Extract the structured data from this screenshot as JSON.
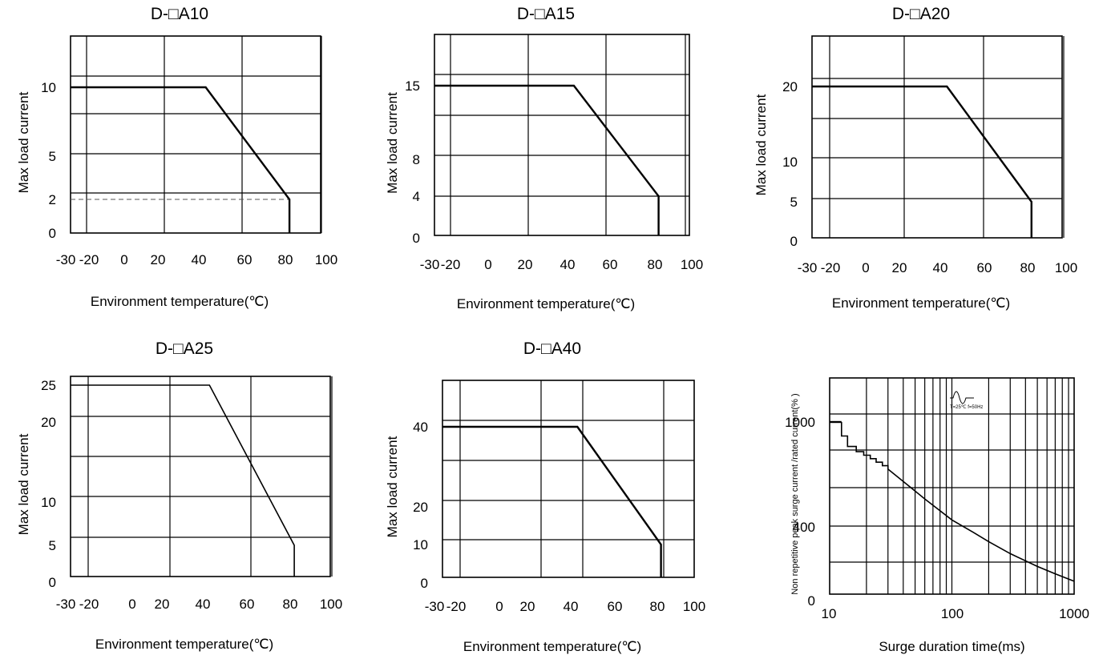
{
  "chart_data": [
    {
      "type": "line",
      "title": "D-□A10",
      "xlabel": "Environment temperature(℃)",
      "ylabel": "Max load current",
      "x_ticks": [
        "-30",
        "-20",
        "0",
        "20",
        "40",
        "60",
        "80",
        "100"
      ],
      "y_ticks": [
        "0",
        "2",
        "5",
        "10"
      ],
      "xlim": [
        -30,
        100
      ],
      "ylim": [
        0,
        14
      ],
      "series": [
        {
          "x": [
            -30,
            43,
            82,
            82
          ],
          "y": [
            10,
            10,
            2,
            0
          ]
        }
      ],
      "reference_line": {
        "y": 2,
        "style": "dashed"
      },
      "grid": true
    },
    {
      "type": "line",
      "title": "D-□A15",
      "xlabel": "Environment temperature(℃)",
      "ylabel": "Max load current",
      "x_ticks": [
        "-30",
        "-20",
        "0",
        "20",
        "40",
        "60",
        "80",
        "100"
      ],
      "y_ticks": [
        "0",
        "4",
        "8",
        "15"
      ],
      "xlim": [
        -30,
        100
      ],
      "ylim": [
        0,
        20
      ],
      "series": [
        {
          "x": [
            -30,
            43,
            82,
            82
          ],
          "y": [
            15,
            15,
            4,
            0
          ]
        }
      ],
      "grid": true
    },
    {
      "type": "line",
      "title": "D-□A20",
      "xlabel": "Environment temperature(℃)",
      "ylabel": "Max load current",
      "x_ticks": [
        "-30",
        "-20",
        "0",
        "20",
        "40",
        "60",
        "80",
        "100"
      ],
      "y_ticks": [
        "0",
        "5",
        "10",
        "20"
      ],
      "xlim": [
        -30,
        100
      ],
      "ylim": [
        0,
        25
      ],
      "series": [
        {
          "x": [
            -30,
            43,
            82,
            82
          ],
          "y": [
            20,
            20,
            5,
            0
          ]
        }
      ],
      "grid": true
    },
    {
      "type": "line",
      "title": "D-□A25",
      "xlabel": "Environment temperature(℃)",
      "ylabel": "Max load current",
      "x_ticks": [
        "-30",
        "-20",
        "0",
        "20",
        "40",
        "60",
        "80",
        "100"
      ],
      "y_ticks": [
        "0",
        "5",
        "10",
        "20",
        "25"
      ],
      "xlim": [
        -30,
        100
      ],
      "ylim": [
        0,
        25
      ],
      "series": [
        {
          "x": [
            -30,
            43,
            82,
            82
          ],
          "y": [
            25,
            25,
            5,
            0
          ]
        }
      ],
      "grid": true
    },
    {
      "type": "line",
      "title": "D-□A40",
      "xlabel": "Environment temperature(℃)",
      "ylabel": "Max load current",
      "x_ticks": [
        "-30",
        "-20",
        "0",
        "20",
        "40",
        "60",
        "80",
        "100"
      ],
      "y_ticks": [
        "0",
        "10",
        "20",
        "40"
      ],
      "xlim": [
        -30,
        100
      ],
      "ylim": [
        0,
        50
      ],
      "series": [
        {
          "x": [
            -30,
            43,
            82,
            82
          ],
          "y": [
            40,
            40,
            10,
            0
          ]
        }
      ],
      "grid": true
    },
    {
      "type": "line",
      "title": "",
      "xlabel": "Surge duration time(ms)",
      "ylabel": "Non repetitive peak surge current /rated current(% )",
      "x_scale": "log",
      "x_ticks": [
        "10",
        "100",
        "1000"
      ],
      "y_ticks": [
        "0",
        "400",
        "1000"
      ],
      "xlim": [
        10,
        1000
      ],
      "ylim": [
        0,
        1150
      ],
      "series": [
        {
          "x": [
            12.5,
            12.5,
            14,
            14,
            16.5,
            16.5,
            19,
            19,
            21.5,
            21.5,
            24,
            24,
            27,
            27,
            30,
            30,
            40,
            60,
            100,
            150,
            200,
            300,
            500,
            700,
            1000
          ],
          "y": [
            1000,
            920,
            920,
            860,
            860,
            830,
            830,
            810,
            810,
            790,
            790,
            770,
            770,
            750,
            750,
            730,
            660,
            560,
            440,
            370,
            320,
            255,
            185,
            145,
            105
          ]
        }
      ],
      "inset_label": "T=25℃ f=50Hz",
      "grid": true
    }
  ]
}
